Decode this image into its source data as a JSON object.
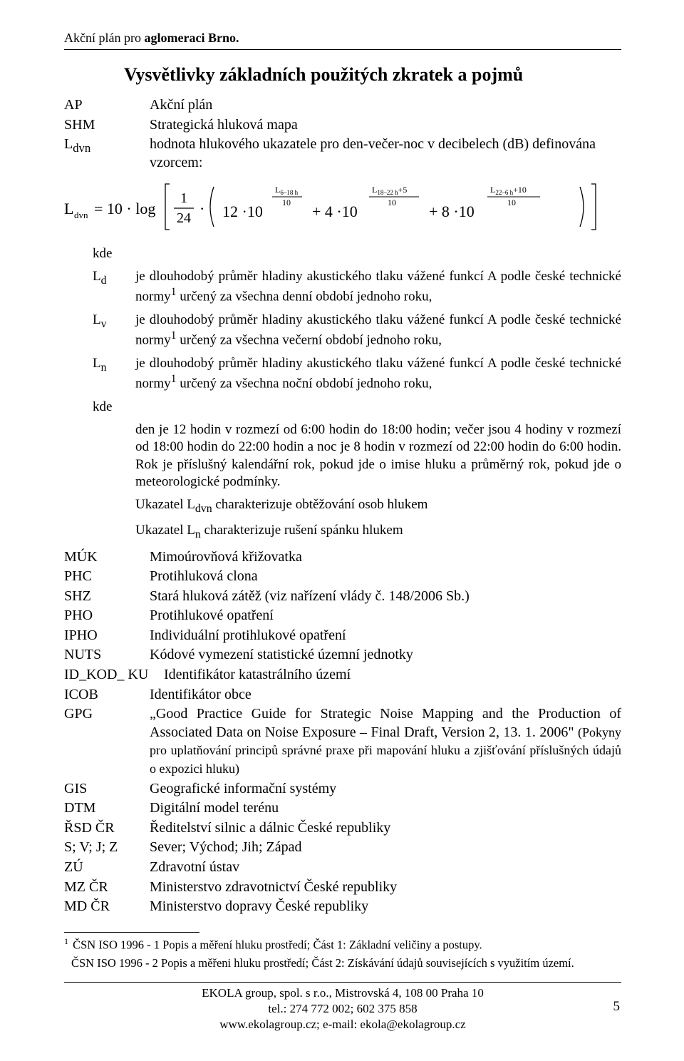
{
  "header": {
    "prefix": "Akční plán pro ",
    "bold": "aglomeraci Brno."
  },
  "title": "Vysvětlivky základních použitých zkratek a pojmů",
  "top_defs": [
    {
      "term": "AP",
      "def": "Akční plán"
    },
    {
      "term": "SHM",
      "def": "Strategická hluková mapa"
    },
    {
      "term_html": "L<sub>dvn</sub>",
      "def": "hodnota hlukového ukazatele pro den-večer-noc v decibelech (dB) definována vzorcem:"
    }
  ],
  "formula": {
    "text_parts": {
      "lhs": "L",
      "lhs_sub": "dvn",
      "eq": "= 10 · log",
      "frac_num": "1",
      "frac_den": "24",
      "dot": "·",
      "t1a": "12 ·10",
      "e1_top": "L",
      "e1_top_sub": "6–18 h",
      "e1_bot": "10",
      "plus1": "+ 4 ·10",
      "e2_top": "L",
      "e2_top_sub": "18–22 h",
      "e2_top_tail": "+5",
      "e2_bot": "10",
      "plus2": "+ 8 ·10",
      "e3_top": "L",
      "e3_top_sub": "22–6 h",
      "e3_top_tail": "+10",
      "e3_bot": "10"
    }
  },
  "kde": "kde",
  "sub_defs": [
    {
      "term_html": "L<sub>d</sub>",
      "def_html": "je dlouhodobý průměr hladiny akustického tlaku vážené funkcí A podle české technické normy<sup>1</sup> určený za všechna denní období jednoho roku,"
    },
    {
      "term_html": "L<sub>v</sub>",
      "def_html": "je dlouhodobý průměr hladiny akustického tlaku vážené funkcí A podle české technické normy<sup>1</sup> určený za všechna večerní období jednoho roku,"
    },
    {
      "term_html": "L<sub>n</sub>",
      "def_html": "je dlouhodobý průměr hladiny akustického tlaku vážené funkcí A podle české technické normy<sup>1</sup> určený za všechna noční období jednoho roku,"
    },
    {
      "term_html": "kde",
      "def_html": ""
    }
  ],
  "paragraphs": [
    "den je 12 hodin v rozmezí od 6:00 hodin do 18:00 hodin; večer jsou 4 hodiny v rozmezí od 18:00 hodin do 22:00 hodin a noc je 8 hodin v rozmezí od 22:00 hodin do 6:00 hodin. Rok je příslušný kalendářní rok, pokud jde o imise hluku a průměrný rok, pokud jde o meteorologické podmínky.",
    "Ukazatel  L<sub>dvn</sub>  charakterizuje  obtěžování osob hlukem",
    "Ukazatel L<sub>n</sub> charakterizuje rušení spánku hlukem"
  ],
  "main_defs": [
    {
      "term": "MÚK",
      "def": "Mimoúrovňová křižovatka"
    },
    {
      "term": "PHC",
      "def": "Protihluková clona"
    },
    {
      "term": "SHZ",
      "def": "Stará hluková zátěž (viz nařízení vlády č. 148/2006 Sb.)"
    },
    {
      "term": "PHO",
      "def": "Protihlukové opatření"
    },
    {
      "term": "IPHO",
      "def": "Individuální protihlukové opatření"
    },
    {
      "term": "NUTS",
      "def": "Kódové vymezení statistické územní jednotky"
    },
    {
      "term": "ID_KOD_ KU",
      "def": "Identifikátor katastrálního území",
      "wide": true
    },
    {
      "term": "ICOB",
      "def": "Identifikátor obce"
    },
    {
      "term": "GPG",
      "def_html": "„Good Practice Guide for Strategic Noise Mapping and the Production of Associated Data on Noise Exposure – Final Draft, Version 2, 13. 1. 2006\" <span style=\"font-size:18px;\">(Pokyny pro uplatňování principů správné praxe při mapování hluku a zjišťování příslušných údajů o expozici hluku)</span>",
      "justify": true
    },
    {
      "term": "GIS",
      "def": "Geografické informační systémy"
    },
    {
      "term": "DTM",
      "def": "Digitální model terénu"
    },
    {
      "term": "ŘSD ČR",
      "def": "Ředitelství silnic a dálnic České republiky"
    },
    {
      "term": "S; V; J; Z",
      "def": "Sever; Východ; Jih; Západ"
    },
    {
      "term": "ZÚ",
      "def": "Zdravotní ústav"
    },
    {
      "term": "MZ ČR",
      "def": "Ministerstvo zdravotnictví České republiky"
    },
    {
      "term": "MD ČR",
      "def": "Ministerstvo dopravy České republiky"
    }
  ],
  "footnotes": [
    "ČSN ISO 1996 - 1 Popis a měření hluku prostředí; Část 1: Základní veličiny a postupy.",
    "ČSN ISO 1996 - 2 Popis a měřeni hluku prostředí; Část 2: Získávání údajů souvisejících s využitím území."
  ],
  "footnote_num": "1",
  "footer": {
    "l1": "EKOLA group, spol. s r.o., Mistrovská 4, 108 00 Praha 10",
    "l2": "tel.: 274 772 002; 602 375 858",
    "l3": "www.ekolagroup.cz;  e-mail: ekola@ekolagroup.cz"
  },
  "page_number": "5"
}
